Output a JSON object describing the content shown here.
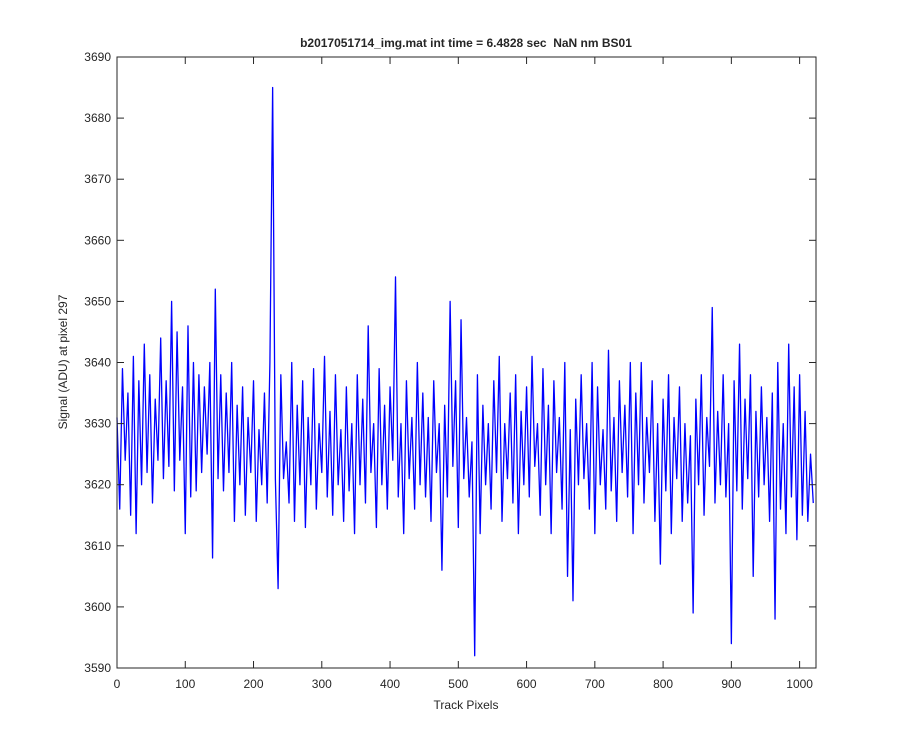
{
  "chart_data": {
    "type": "line",
    "title": "b2017051714_img.mat int time = 6.4828 sec  NaN nm BS01",
    "x_label": "Track Pixels",
    "y_label": "Signal (ADU) at pixel 297",
    "color": "#0000ff",
    "xlim": [
      0,
      1024
    ],
    "ylim": [
      3590,
      3690
    ],
    "xticks": [
      0,
      100,
      200,
      300,
      400,
      500,
      600,
      700,
      800,
      900,
      1000
    ],
    "yticks": [
      3590,
      3600,
      3610,
      3620,
      3630,
      3640,
      3650,
      3660,
      3670,
      3680,
      3690
    ],
    "grid": false,
    "x": [
      0,
      4,
      8,
      12,
      16,
      20,
      24,
      28,
      32,
      36,
      40,
      44,
      48,
      52,
      56,
      60,
      64,
      68,
      72,
      76,
      80,
      84,
      88,
      92,
      96,
      100,
      104,
      108,
      112,
      116,
      120,
      124,
      128,
      132,
      136,
      140,
      144,
      148,
      152,
      156,
      160,
      164,
      168,
      172,
      176,
      180,
      184,
      188,
      192,
      196,
      200,
      204,
      208,
      212,
      216,
      220,
      224,
      228,
      232,
      236,
      240,
      244,
      248,
      252,
      256,
      260,
      264,
      268,
      272,
      276,
      280,
      284,
      288,
      292,
      296,
      300,
      304,
      308,
      312,
      316,
      320,
      324,
      328,
      332,
      336,
      340,
      344,
      348,
      352,
      356,
      360,
      364,
      368,
      372,
      376,
      380,
      384,
      388,
      392,
      396,
      400,
      404,
      408,
      412,
      416,
      420,
      424,
      428,
      432,
      436,
      440,
      444,
      448,
      452,
      456,
      460,
      464,
      468,
      472,
      476,
      480,
      484,
      488,
      492,
      496,
      500,
      504,
      508,
      512,
      516,
      520,
      524,
      528,
      532,
      536,
      540,
      544,
      548,
      552,
      556,
      560,
      564,
      568,
      572,
      576,
      580,
      584,
      588,
      592,
      596,
      600,
      604,
      608,
      612,
      616,
      620,
      624,
      628,
      632,
      636,
      640,
      644,
      648,
      652,
      656,
      660,
      664,
      668,
      672,
      676,
      680,
      684,
      688,
      692,
      696,
      700,
      704,
      708,
      712,
      716,
      720,
      724,
      728,
      732,
      736,
      740,
      744,
      748,
      752,
      756,
      760,
      764,
      768,
      772,
      776,
      780,
      784,
      788,
      792,
      796,
      800,
      804,
      808,
      812,
      816,
      820,
      824,
      828,
      832,
      836,
      840,
      844,
      848,
      852,
      856,
      860,
      864,
      868,
      872,
      876,
      880,
      884,
      888,
      892,
      896,
      900,
      904,
      908,
      912,
      916,
      920,
      924,
      928,
      932,
      936,
      940,
      944,
      948,
      952,
      956,
      960,
      964,
      968,
      972,
      976,
      980,
      984,
      988,
      992,
      996,
      1000,
      1004,
      1008,
      1012,
      1016,
      1020
    ],
    "values": [
      3631,
      3616,
      3639,
      3624,
      3635,
      3615,
      3641,
      3612,
      3637,
      3620,
      3643,
      3622,
      3638,
      3617,
      3634,
      3624,
      3644,
      3621,
      3637,
      3623,
      3650,
      3619,
      3645,
      3624,
      3636,
      3612,
      3646,
      3618,
      3640,
      3619,
      3638,
      3622,
      3636,
      3625,
      3640,
      3608,
      3652,
      3621,
      3638,
      3619,
      3635,
      3622,
      3640,
      3614,
      3633,
      3620,
      3636,
      3615,
      3631,
      3622,
      3637,
      3614,
      3629,
      3620,
      3635,
      3617,
      3640,
      3685,
      3621,
      3603,
      3638,
      3621,
      3627,
      3617,
      3640,
      3614,
      3633,
      3620,
      3637,
      3613,
      3631,
      3620,
      3639,
      3616,
      3630,
      3622,
      3641,
      3618,
      3632,
      3615,
      3638,
      3620,
      3629,
      3614,
      3636,
      3619,
      3630,
      3612,
      3638,
      3620,
      3634,
      3617,
      3646,
      3622,
      3630,
      3613,
      3639,
      3620,
      3633,
      3616,
      3636,
      3624,
      3654,
      3618,
      3630,
      3612,
      3637,
      3621,
      3631,
      3616,
      3640,
      3620,
      3635,
      3618,
      3631,
      3614,
      3637,
      3622,
      3630,
      3606,
      3633,
      3618,
      3650,
      3623,
      3637,
      3613,
      3647,
      3621,
      3631,
      3618,
      3627,
      3592,
      3638,
      3612,
      3633,
      3620,
      3630,
      3616,
      3637,
      3622,
      3641,
      3614,
      3630,
      3621,
      3635,
      3617,
      3638,
      3612,
      3632,
      3620,
      3636,
      3618,
      3641,
      3623,
      3630,
      3615,
      3639,
      3620,
      3633,
      3612,
      3637,
      3622,
      3631,
      3616,
      3640,
      3605,
      3629,
      3601,
      3634,
      3620,
      3638,
      3621,
      3630,
      3616,
      3640,
      3612,
      3636,
      3620,
      3629,
      3616,
      3642,
      3619,
      3631,
      3614,
      3637,
      3622,
      3633,
      3618,
      3640,
      3612,
      3635,
      3620,
      3640,
      3617,
      3631,
      3622,
      3637,
      3614,
      3630,
      3607,
      3634,
      3619,
      3638,
      3612,
      3631,
      3621,
      3636,
      3614,
      3630,
      3617,
      3628,
      3599,
      3634,
      3620,
      3638,
      3615,
      3631,
      3623,
      3649,
      3617,
      3632,
      3620,
      3638,
      3618,
      3630,
      3594,
      3637,
      3619,
      3643,
      3616,
      3634,
      3621,
      3638,
      3605,
      3632,
      3618,
      3636,
      3620,
      3631,
      3614,
      3635,
      3598,
      3640,
      3616,
      3630,
      3612,
      3643,
      3618,
      3636,
      3611,
      3638,
      3615,
      3632,
      3614,
      3625,
      3617
    ]
  }
}
